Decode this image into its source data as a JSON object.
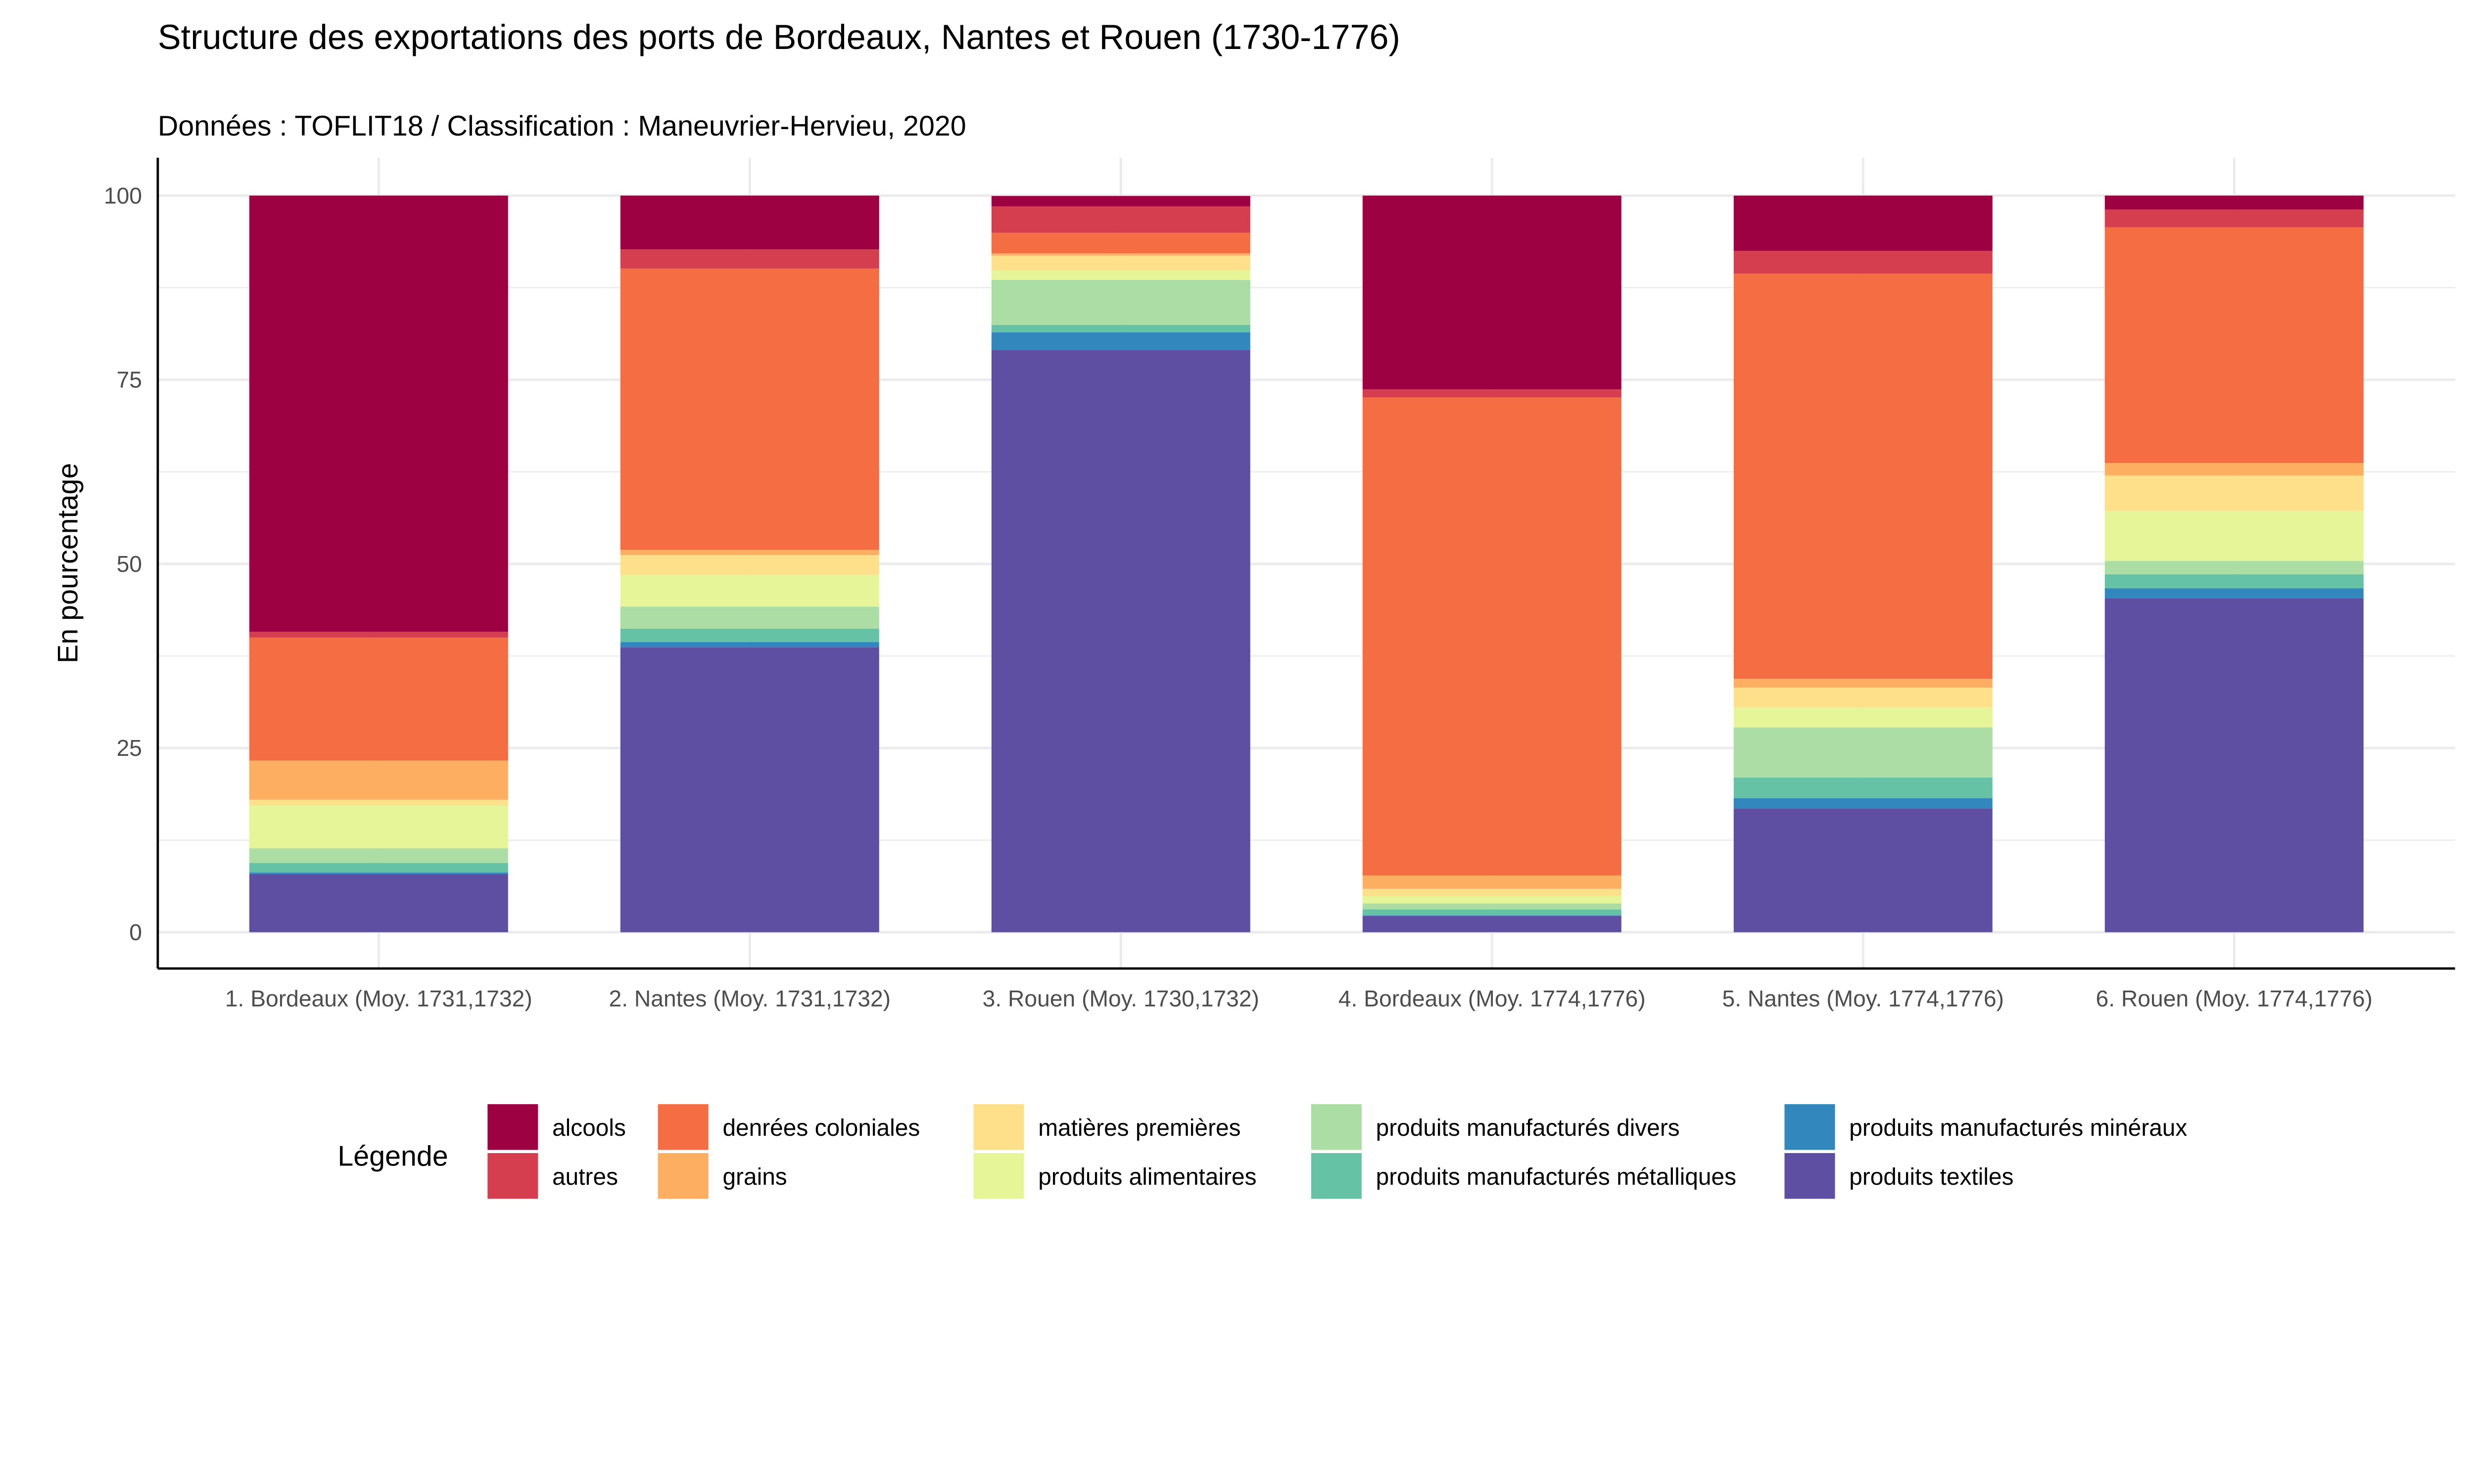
{
  "chart_data": {
    "type": "bar",
    "stacked": true,
    "title": "Structure des exportations des ports de Bordeaux, Nantes et Rouen (1730-1776)",
    "subtitle": "Données : TOFLIT18 / Classification : Maneuvrier-Hervieu, 2020",
    "xlabel": "",
    "ylabel": "En pourcentage",
    "ylim": [
      0,
      100
    ],
    "yticks": [
      0,
      25,
      50,
      75,
      100
    ],
    "grid": true,
    "legend_title": "Légende",
    "legend_position": "bottom",
    "categories": [
      "1. Bordeaux (Moy. 1731,1732)",
      "2. Nantes (Moy. 1731,1732)",
      "3. Rouen (Moy. 1730,1732)",
      "4. Bordeaux (Moy. 1774,1776)",
      "5. Nantes (Moy. 1774,1776)",
      "6. Rouen (Moy. 1774,1776)"
    ],
    "series": [
      {
        "name": "alcools",
        "color": "#9E0142",
        "values": [
          59.2,
          7.3,
          1.4,
          26.3,
          7.5,
          1.9
        ]
      },
      {
        "name": "autres",
        "color": "#D53E4F",
        "values": [
          0.8,
          2.6,
          3.6,
          1.1,
          3.1,
          2.4
        ]
      },
      {
        "name": "denrées coloniales",
        "color": "#F46D43",
        "values": [
          16.7,
          38.2,
          2.8,
          64.9,
          55.0,
          32.0
        ]
      },
      {
        "name": "grains",
        "color": "#FDAE61",
        "values": [
          5.3,
          0.7,
          0.3,
          1.8,
          1.2,
          1.7
        ]
      },
      {
        "name": "matières premières",
        "color": "#FEE08B",
        "values": [
          0.8,
          2.7,
          2.0,
          1.0,
          2.7,
          4.8
        ]
      },
      {
        "name": "produits alimentaires",
        "color": "#E6F598",
        "values": [
          5.8,
          4.3,
          1.3,
          1.0,
          2.7,
          6.8
        ]
      },
      {
        "name": "produits manufacturés divers",
        "color": "#ABDDA4",
        "values": [
          2.0,
          3.0,
          6.1,
          0.8,
          6.8,
          1.8
        ]
      },
      {
        "name": "produits manufacturés métalliques",
        "color": "#66C2A5",
        "values": [
          1.3,
          1.8,
          1.0,
          0.8,
          2.8,
          1.9
        ]
      },
      {
        "name": "produits manufacturés minéraux",
        "color": "#3288BD",
        "values": [
          0.2,
          0.7,
          2.4,
          0.1,
          1.4,
          1.4
        ]
      },
      {
        "name": "produits textiles",
        "color": "#5E4FA2",
        "values": [
          7.9,
          38.7,
          79.05,
          2.2,
          16.8,
          45.3
        ]
      }
    ]
  }
}
